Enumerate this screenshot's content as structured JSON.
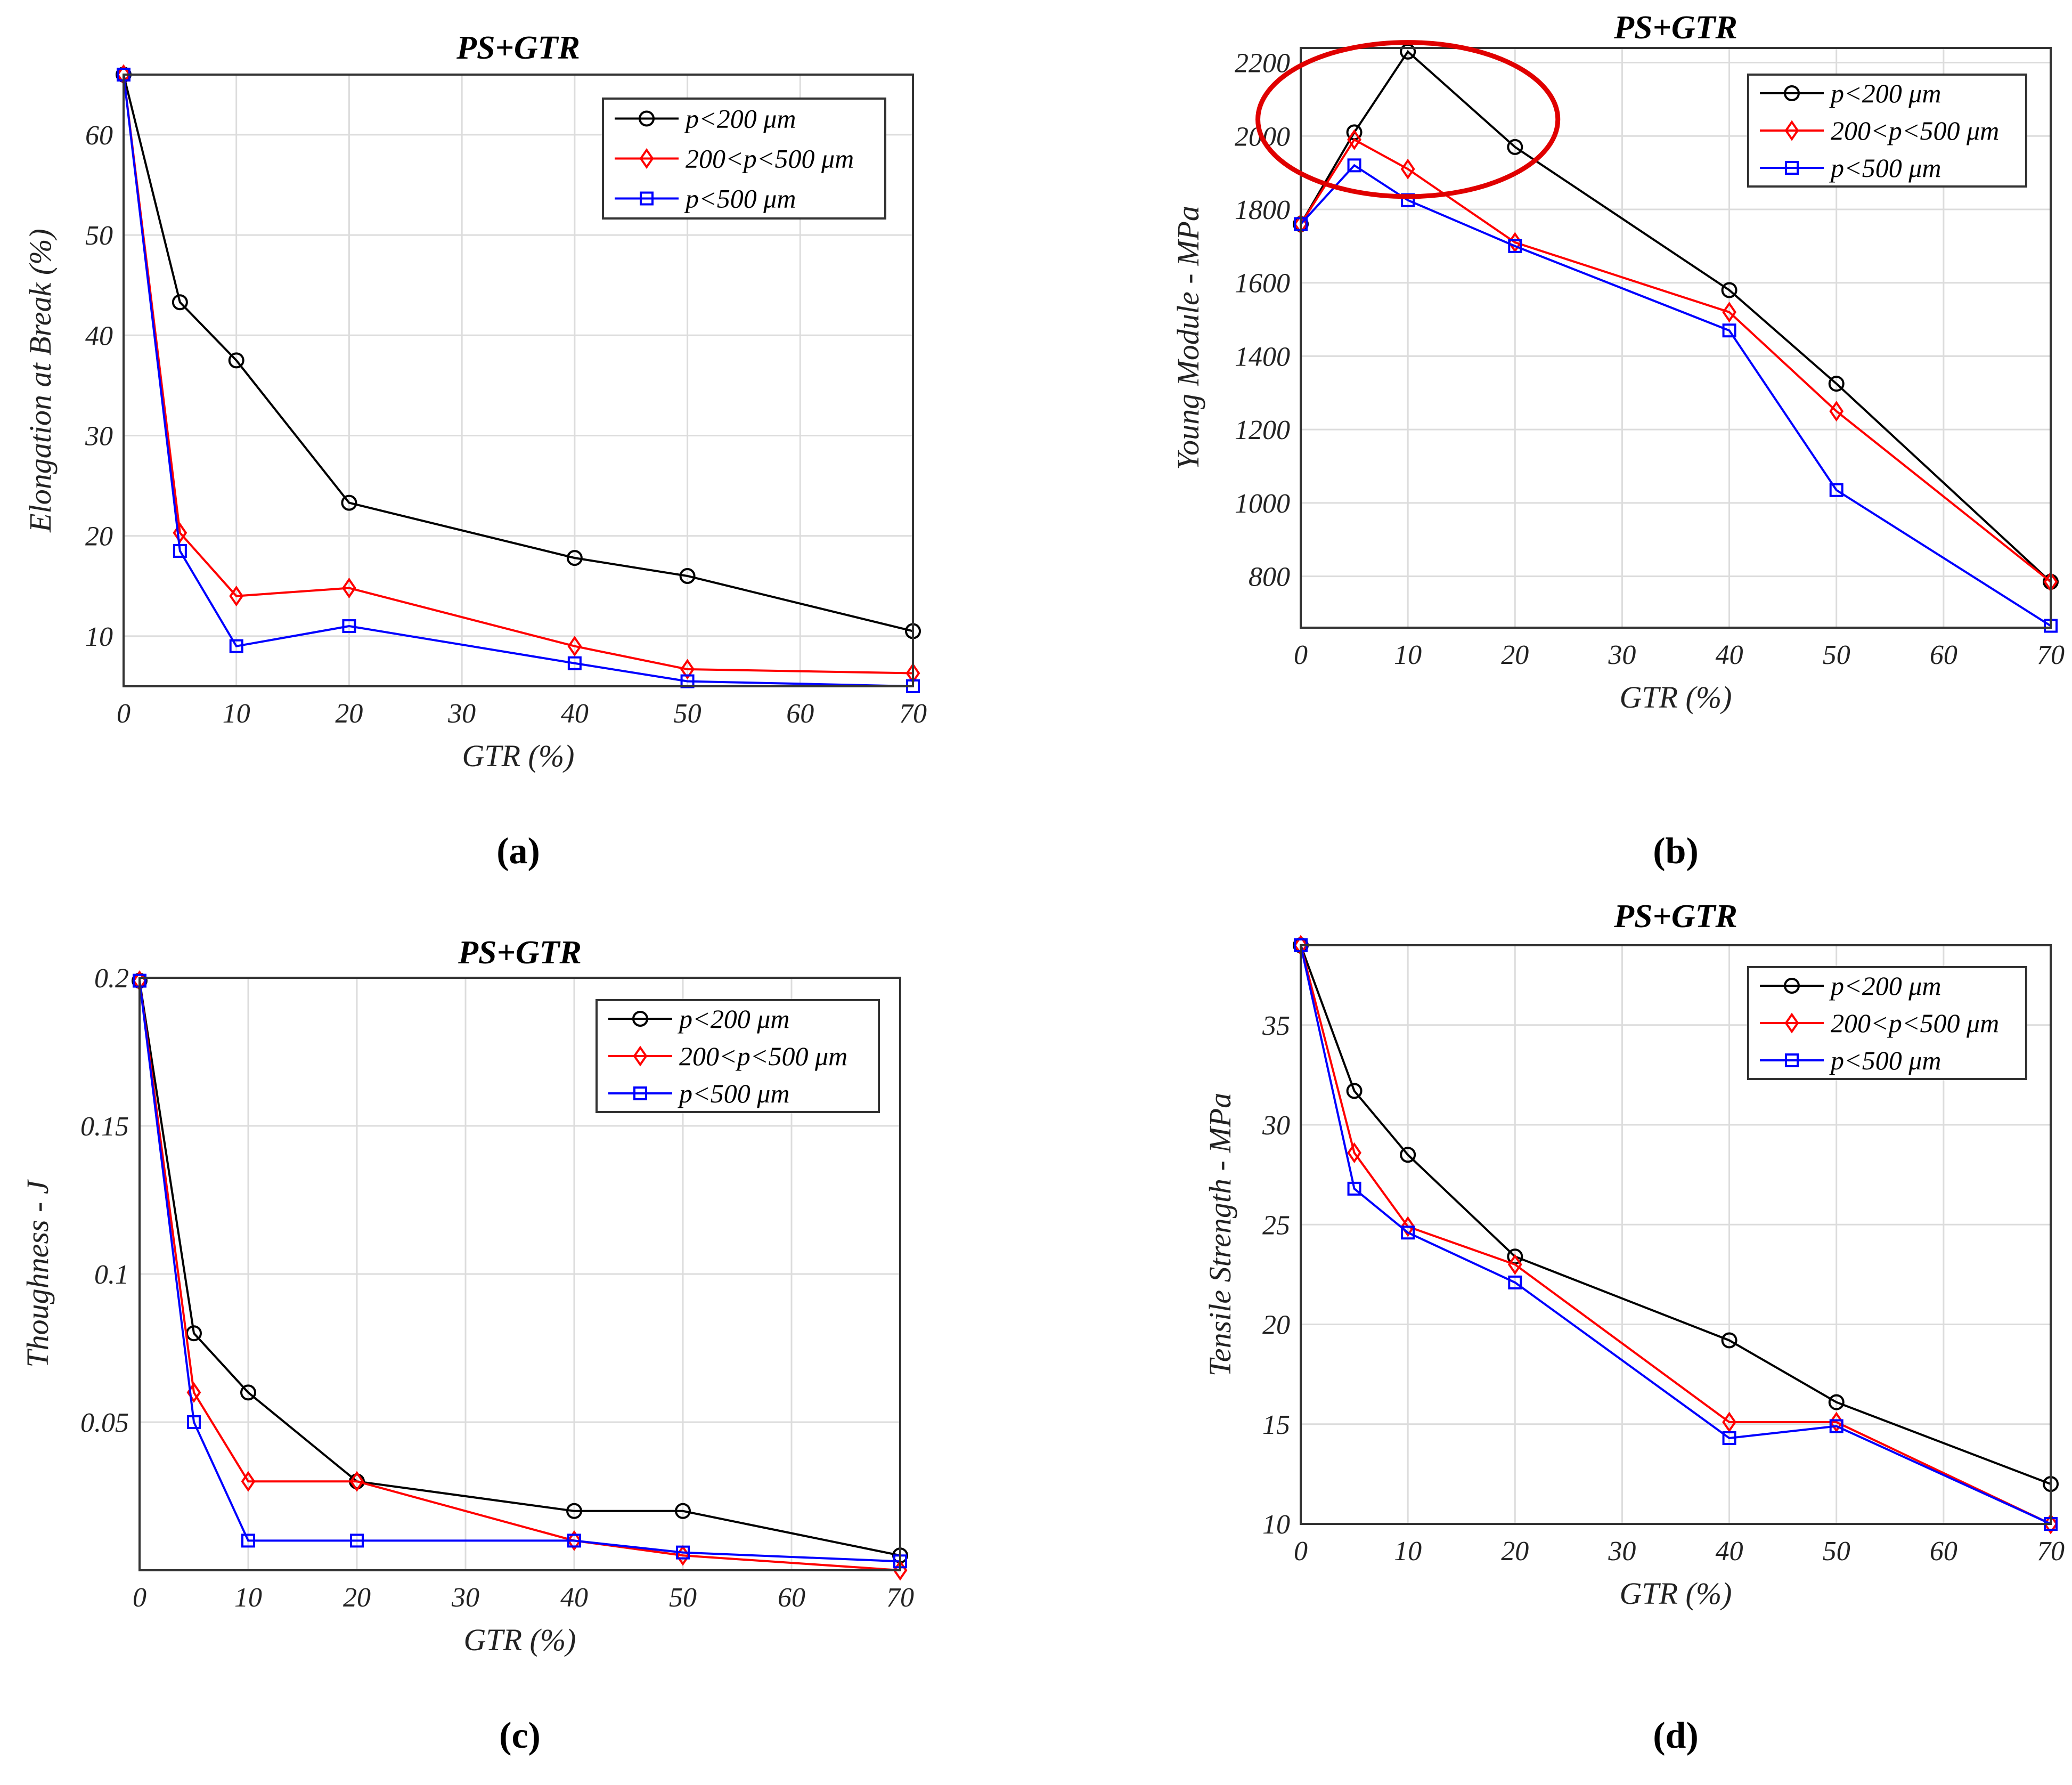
{
  "chart_data": [
    {
      "type": "line",
      "panel": "a",
      "title": "PS+GTR",
      "caption": "(a)",
      "xlabel": "GTR (%)",
      "ylabel": "Elongation at Break (%)",
      "xlim": [
        0,
        70
      ],
      "ylim": [
        5,
        66
      ],
      "xticks": [
        0,
        10,
        20,
        30,
        40,
        50,
        60,
        70
      ],
      "yticks": [
        10,
        20,
        30,
        40,
        50,
        60
      ],
      "grid": true,
      "legend_position": "top-right",
      "x": [
        0,
        5,
        10,
        20,
        40,
        50,
        70
      ],
      "series": [
        {
          "name": "p<200  μm",
          "color": "#000000",
          "marker": "circle",
          "values": [
            66,
            43.3,
            37.5,
            23.3,
            17.8,
            16,
            10.5
          ]
        },
        {
          "name": "200<p<500  μm",
          "color": "#ff0000",
          "marker": "diamond",
          "values": [
            66,
            20.3,
            14,
            14.8,
            9,
            6.7,
            6.3
          ]
        },
        {
          "name": "p<500  μm",
          "color": "#0000ff",
          "marker": "square",
          "values": [
            66,
            18.5,
            9,
            11,
            7.3,
            5.5,
            5
          ]
        }
      ]
    },
    {
      "type": "line",
      "panel": "b",
      "title": "PS+GTR",
      "caption": "(b)",
      "xlabel": "GTR (%)",
      "ylabel": "Young Module - MPa",
      "xlim": [
        0,
        70
      ],
      "ylim": [
        660,
        2240
      ],
      "xticks": [
        0,
        10,
        20,
        30,
        40,
        50,
        60,
        70
      ],
      "yticks": [
        800,
        1000,
        1200,
        1400,
        1600,
        1800,
        2000,
        2200
      ],
      "grid": true,
      "legend_position": "top-right",
      "highlight_ellipse": {
        "x_center": 10,
        "y_center": 2045,
        "x_radius": 14,
        "y_radius": 210
      },
      "x": [
        0,
        5,
        10,
        20,
        40,
        50,
        70
      ],
      "series": [
        {
          "name": "p<200  μm",
          "color": "#000000",
          "marker": "circle",
          "values": [
            1760,
            2010,
            2230,
            1970,
            1580,
            1325,
            785
          ]
        },
        {
          "name": "200<p<500  μm",
          "color": "#ff0000",
          "marker": "diamond",
          "values": [
            1760,
            1990,
            1910,
            1710,
            1520,
            1250,
            785
          ]
        },
        {
          "name": "p<500  μm",
          "color": "#0000ff",
          "marker": "square",
          "values": [
            1760,
            1920,
            1825,
            1700,
            1470,
            1035,
            665
          ]
        }
      ]
    },
    {
      "type": "line",
      "panel": "c",
      "title": "PS+GTR",
      "caption": "(c)",
      "xlabel": "GTR (%)",
      "ylabel": "Thoughness - J",
      "xlim": [
        0,
        70
      ],
      "ylim": [
        0,
        0.2
      ],
      "xticks": [
        0,
        10,
        20,
        30,
        40,
        50,
        60,
        70
      ],
      "yticks": [
        0.05,
        0.1,
        0.15,
        0.2
      ],
      "ytick_labels": [
        "0.05",
        "0.1",
        "0.15",
        "0.2"
      ],
      "grid": true,
      "legend_position": "top-right",
      "x": [
        0,
        5,
        10,
        20,
        40,
        50,
        70
      ],
      "series": [
        {
          "name": "p<200  μm",
          "color": "#000000",
          "marker": "circle",
          "values": [
            0.199,
            0.08,
            0.06,
            0.03,
            0.02,
            0.02,
            0.005
          ]
        },
        {
          "name": "200<p<500  μm",
          "color": "#ff0000",
          "marker": "diamond",
          "values": [
            0.199,
            0.06,
            0.03,
            0.03,
            0.01,
            0.005,
            0.0
          ]
        },
        {
          "name": "p<500  μm",
          "color": "#0000ff",
          "marker": "square",
          "values": [
            0.199,
            0.05,
            0.01,
            0.01,
            0.01,
            0.006,
            0.003
          ]
        }
      ]
    },
    {
      "type": "line",
      "panel": "d",
      "title": "PS+GTR",
      "caption": "(d)",
      "xlabel": "GTR (%)",
      "ylabel": "Tensile Strength - MPa",
      "xlim": [
        0,
        70
      ],
      "ylim": [
        10,
        39
      ],
      "xticks": [
        0,
        10,
        20,
        30,
        40,
        50,
        60,
        70
      ],
      "yticks": [
        10,
        15,
        20,
        25,
        30,
        35
      ],
      "grid": true,
      "legend_position": "top-right",
      "x": [
        0,
        5,
        10,
        20,
        40,
        50,
        70
      ],
      "series": [
        {
          "name": "p<200  μm",
          "color": "#000000",
          "marker": "circle",
          "values": [
            39,
            31.7,
            28.5,
            23.4,
            19.2,
            16.1,
            12
          ]
        },
        {
          "name": "200<p<500  μm",
          "color": "#ff0000",
          "marker": "diamond",
          "values": [
            39,
            28.6,
            24.9,
            23,
            15.1,
            15.1,
            10
          ]
        },
        {
          "name": "p<500  μm",
          "color": "#0000ff",
          "marker": "square",
          "values": [
            39,
            26.8,
            24.6,
            22.1,
            14.3,
            14.9,
            10
          ]
        }
      ]
    }
  ]
}
